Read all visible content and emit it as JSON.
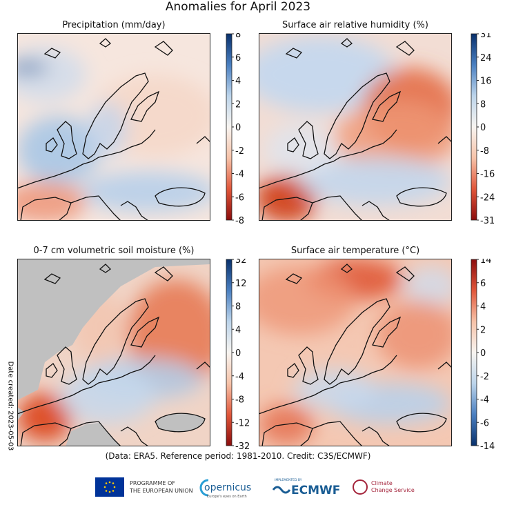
{
  "title": "Anomalies for April 2023",
  "panels": [
    {
      "title": "Precipitation (mm/day)",
      "colorbar_ticks": [
        8,
        6,
        4,
        2,
        0,
        -2,
        -4,
        -6,
        -8
      ]
    },
    {
      "title": "Surface air relative humidity (%)",
      "colorbar_ticks": [
        31,
        24,
        16,
        8,
        0,
        -8,
        -16,
        -24,
        -31
      ]
    },
    {
      "title": "0-7 cm volumetric soil moisture (%)",
      "colorbar_ticks": [
        32,
        12,
        8,
        4,
        0,
        -4,
        -8,
        -12,
        -32
      ]
    },
    {
      "title": "Surface air temperature (°C)",
      "colorbar_ticks": [
        14,
        6,
        4,
        2,
        0,
        -2,
        -4,
        -6,
        -14
      ]
    }
  ],
  "date_created": "Date created: 2023-05-03",
  "caption": "(Data: ERA5.  Reference period: 1981-2010.  Credit: C3S/ECMWF)",
  "logos": {
    "eu": [
      "PROGRAMME OF",
      "THE EUROPEAN UNION"
    ],
    "copernicus": [
      "opernicus",
      "Europe's eyes on Earth"
    ],
    "ecmwf": [
      "IMPLEMENTED BY",
      "ECMWF"
    ],
    "c3s": [
      "Climate",
      "Change Service"
    ]
  }
}
